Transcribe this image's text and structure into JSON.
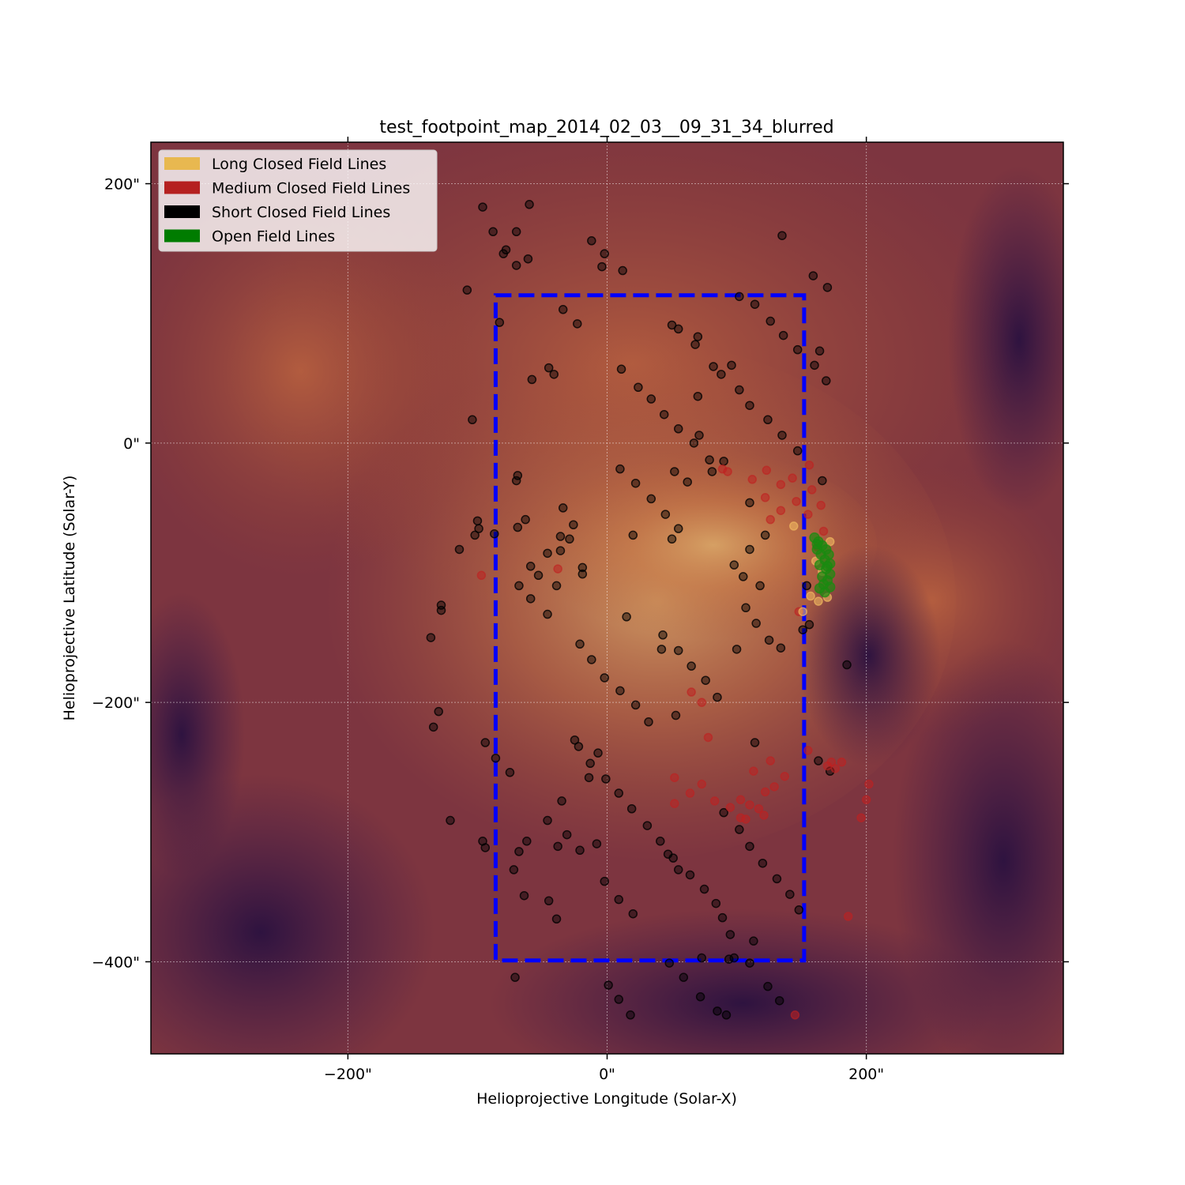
{
  "chart_data": {
    "type": "scatter",
    "title": "test_footpoint_map_2014_02_03__09_31_34_blurred",
    "xlabel": "Helioprojective Longitude (Solar-X)",
    "ylabel": "Helioprojective Latitude (Solar-Y)",
    "xlim": [
      -352,
      352
    ],
    "ylim": [
      -471,
      232
    ],
    "xticks": [
      -200,
      0,
      200
    ],
    "yticks": [
      200,
      0,
      -200,
      -400
    ],
    "xtick_labels": [
      "−200\"",
      "0\"",
      "200\""
    ],
    "ytick_labels": [
      "200\"",
      "0\"",
      "−200\"",
      "−400\""
    ],
    "grid": true,
    "background": "AIA EUV intensity image (orange/purple colormap)",
    "box": {
      "x": [
        -86,
        152
      ],
      "y": [
        -399,
        114
      ],
      "color": "#0000ff"
    },
    "legend_position": "upper-left",
    "legend": [
      {
        "label": "Long Closed Field Lines",
        "color": "#e8b850"
      },
      {
        "label": "Medium Closed Field Lines",
        "color": "#b52020"
      },
      {
        "label": "Short Closed Field Lines",
        "color": "#000000"
      },
      {
        "label": "Open Field Lines",
        "color": "#007c00"
      }
    ],
    "series": [
      {
        "name": "Short Closed Field Lines",
        "color": "#000000",
        "points": [
          [
            -96,
            182
          ],
          [
            -88,
            163
          ],
          [
            -70,
            163
          ],
          [
            -60,
            184
          ],
          [
            -80,
            146
          ],
          [
            -78,
            149
          ],
          [
            -70,
            137
          ],
          [
            -61,
            142
          ],
          [
            -12,
            156
          ],
          [
            -2,
            146
          ],
          [
            -4,
            136
          ],
          [
            12,
            133
          ],
          [
            135,
            160
          ],
          [
            -108,
            118
          ],
          [
            159,
            129
          ],
          [
            170,
            120
          ],
          [
            -83,
            93
          ],
          [
            -34,
            103
          ],
          [
            -23,
            92
          ],
          [
            102,
            113
          ],
          [
            114,
            107
          ],
          [
            126,
            94
          ],
          [
            136,
            83
          ],
          [
            50,
            91
          ],
          [
            55,
            88
          ],
          [
            68,
            76
          ],
          [
            70,
            82
          ],
          [
            147,
            72
          ],
          [
            160,
            60
          ],
          [
            164,
            71
          ],
          [
            169,
            48
          ],
          [
            -45,
            58
          ],
          [
            -41,
            53
          ],
          [
            -58,
            49
          ],
          [
            11,
            57
          ],
          [
            82,
            59
          ],
          [
            88,
            53
          ],
          [
            96,
            60
          ],
          [
            102,
            41
          ],
          [
            70,
            36
          ],
          [
            24,
            43
          ],
          [
            34,
            34
          ],
          [
            44,
            22
          ],
          [
            55,
            11
          ],
          [
            -104,
            18
          ],
          [
            110,
            29
          ],
          [
            124,
            18
          ],
          [
            71,
            6
          ],
          [
            67,
            0
          ],
          [
            135,
            6
          ],
          [
            147,
            -6
          ],
          [
            79,
            -13
          ],
          [
            90,
            -14
          ],
          [
            81,
            -22
          ],
          [
            52,
            -22
          ],
          [
            62,
            -30
          ],
          [
            10,
            -20
          ],
          [
            22,
            -31
          ],
          [
            34,
            -43
          ],
          [
            45,
            -55
          ],
          [
            -69,
            -25
          ],
          [
            -70,
            -29
          ],
          [
            -100,
            -60
          ],
          [
            -99,
            -66
          ],
          [
            -102,
            -71
          ],
          [
            -114,
            -82
          ],
          [
            -87,
            -70
          ],
          [
            -69,
            -65
          ],
          [
            -63,
            -59
          ],
          [
            -34,
            -50
          ],
          [
            -26,
            -63
          ],
          [
            -36,
            -72
          ],
          [
            -29,
            -74
          ],
          [
            -36,
            -83
          ],
          [
            -19,
            -96
          ],
          [
            -19,
            -101
          ],
          [
            -59,
            -95
          ],
          [
            -53,
            -102
          ],
          [
            -46,
            -85
          ],
          [
            -39,
            -110
          ],
          [
            -68,
            -110
          ],
          [
            -59,
            -120
          ],
          [
            -46,
            -132
          ],
          [
            20,
            -71
          ],
          [
            50,
            -74
          ],
          [
            55,
            -66
          ],
          [
            110,
            -46
          ],
          [
            110,
            -82
          ],
          [
            122,
            -71
          ],
          [
            98,
            -94
          ],
          [
            105,
            -103
          ],
          [
            118,
            -110
          ],
          [
            107,
            -127
          ],
          [
            115,
            -139
          ],
          [
            125,
            -152
          ],
          [
            134,
            -158
          ],
          [
            151,
            -144
          ],
          [
            166,
            -29
          ],
          [
            154,
            -110
          ],
          [
            156,
            -140
          ],
          [
            -128,
            -125
          ],
          [
            -128,
            -129
          ],
          [
            -136,
            -150
          ],
          [
            15,
            -134
          ],
          [
            43,
            -148
          ],
          [
            42,
            -159
          ],
          [
            55,
            -160
          ],
          [
            65,
            -172
          ],
          [
            76,
            -183
          ],
          [
            85,
            -196
          ],
          [
            100,
            -159
          ],
          [
            -21,
            -155
          ],
          [
            -12,
            -167
          ],
          [
            -2,
            -181
          ],
          [
            10,
            -191
          ],
          [
            22,
            -202
          ],
          [
            32,
            -215
          ],
          [
            53,
            -210
          ],
          [
            -130,
            -207
          ],
          [
            -134,
            -219
          ],
          [
            -94,
            -231
          ],
          [
            -25,
            -229
          ],
          [
            -22,
            -234
          ],
          [
            -86,
            -243
          ],
          [
            -13,
            -247
          ],
          [
            -7,
            -239
          ],
          [
            -75,
            -254
          ],
          [
            -14,
            -258
          ],
          [
            -1,
            -259
          ],
          [
            9,
            -270
          ],
          [
            19,
            -282
          ],
          [
            31,
            -295
          ],
          [
            41,
            -307
          ],
          [
            51,
            -320
          ],
          [
            114,
            -231
          ],
          [
            163,
            -245
          ],
          [
            172,
            -253
          ],
          [
            -121,
            -291
          ],
          [
            -96,
            -307
          ],
          [
            -94,
            -312
          ],
          [
            -35,
            -276
          ],
          [
            -46,
            -291
          ],
          [
            -38,
            -311
          ],
          [
            -31,
            -302
          ],
          [
            -21,
            -314
          ],
          [
            -8,
            -309
          ],
          [
            -62,
            -307
          ],
          [
            -68,
            -315
          ],
          [
            -72,
            -329
          ],
          [
            -64,
            -349
          ],
          [
            -45,
            -353
          ],
          [
            -39,
            -367
          ],
          [
            55,
            -329
          ],
          [
            -2,
            -338
          ],
          [
            9,
            -352
          ],
          [
            20,
            -363
          ],
          [
            47,
            -317
          ],
          [
            64,
            -333
          ],
          [
            75,
            -344
          ],
          [
            84,
            -355
          ],
          [
            89,
            -366
          ],
          [
            95,
            -379
          ],
          [
            102,
            -298
          ],
          [
            110,
            -311
          ],
          [
            120,
            -324
          ],
          [
            131,
            -336
          ],
          [
            141,
            -348
          ],
          [
            148,
            -360
          ],
          [
            113,
            -384
          ],
          [
            185,
            -171
          ],
          [
            -71,
            -412
          ],
          [
            1,
            -418
          ],
          [
            9,
            -429
          ],
          [
            18,
            -441
          ],
          [
            59,
            -412
          ],
          [
            72,
            -427
          ],
          [
            85,
            -438
          ],
          [
            92,
            -441
          ],
          [
            98,
            -397
          ],
          [
            110,
            -401
          ],
          [
            124,
            -419
          ],
          [
            133,
            -430
          ],
          [
            48,
            -401
          ],
          [
            73,
            -397
          ],
          [
            90,
            -285
          ],
          [
            94,
            -398
          ]
        ]
      },
      {
        "name": "Medium Closed Field Lines",
        "color": "#c02020",
        "points": [
          [
            89,
            -20
          ],
          [
            93,
            -22
          ],
          [
            112,
            -28
          ],
          [
            123,
            -21
          ],
          [
            134,
            -32
          ],
          [
            143,
            -27
          ],
          [
            156,
            -17
          ],
          [
            158,
            -36
          ],
          [
            155,
            -55
          ],
          [
            165,
            -48
          ],
          [
            167,
            -68
          ],
          [
            122,
            -42
          ],
          [
            134,
            -52
          ],
          [
            146,
            -45
          ],
          [
            126,
            -59
          ],
          [
            162,
            -80
          ],
          [
            148,
            -130
          ],
          [
            -97,
            -102
          ],
          [
            -38,
            -97
          ],
          [
            65,
            -192
          ],
          [
            73,
            -200
          ],
          [
            78,
            -227
          ],
          [
            155,
            -237
          ],
          [
            173,
            -246
          ],
          [
            170,
            -249
          ],
          [
            181,
            -246
          ],
          [
            176,
            -251
          ],
          [
            52,
            -258
          ],
          [
            64,
            -270
          ],
          [
            73,
            -263
          ],
          [
            83,
            -276
          ],
          [
            95,
            -281
          ],
          [
            103,
            -275
          ],
          [
            110,
            -279
          ],
          [
            122,
            -269
          ],
          [
            126,
            -245
          ],
          [
            129,
            -265
          ],
          [
            137,
            -257
          ],
          [
            113,
            -253
          ],
          [
            117,
            -282
          ],
          [
            52,
            -278
          ],
          [
            103,
            -289
          ],
          [
            107,
            -290
          ],
          [
            121,
            -287
          ],
          [
            196,
            -289
          ],
          [
            200,
            -275
          ],
          [
            202,
            -263
          ],
          [
            186,
            -365
          ],
          [
            145,
            -441
          ]
        ]
      },
      {
        "name": "Long Closed Field Lines",
        "color": "#f0b860",
        "points": [
          [
            144,
            -64
          ],
          [
            172,
            -76
          ],
          [
            161,
            -91
          ],
          [
            166,
            -99
          ],
          [
            157,
            -118
          ],
          [
            163,
            -122
          ],
          [
            170,
            -119
          ],
          [
            151,
            -130
          ]
        ]
      },
      {
        "name": "Open Field Lines",
        "color": "#1a8a10",
        "points": [
          [
            160,
            -73
          ],
          [
            163,
            -76
          ],
          [
            166,
            -79
          ],
          [
            169,
            -82
          ],
          [
            171,
            -86
          ],
          [
            165,
            -86
          ],
          [
            162,
            -82
          ],
          [
            168,
            -90
          ],
          [
            172,
            -93
          ],
          [
            164,
            -94
          ],
          [
            169,
            -97
          ],
          [
            172,
            -101
          ],
          [
            166,
            -103
          ],
          [
            170,
            -106
          ],
          [
            167,
            -109
          ],
          [
            172,
            -111
          ],
          [
            164,
            -112
          ],
          [
            168,
            -115
          ],
          [
            162,
            -78
          ],
          [
            170,
            -95
          ]
        ]
      }
    ]
  }
}
